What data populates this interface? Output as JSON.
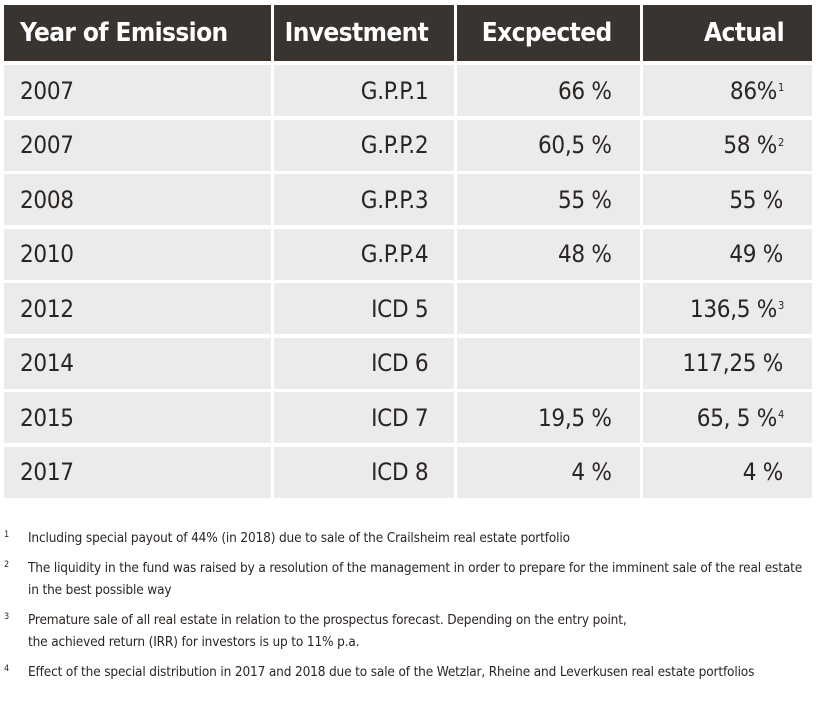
{
  "table": {
    "headers": [
      "Year of Emission",
      "Investment",
      "Excpected",
      "Actual"
    ],
    "rows": [
      {
        "year": "2007",
        "investment": "G.P.P.1",
        "expected": "66 %",
        "actual": "86%",
        "sup": "1"
      },
      {
        "year": "2007",
        "investment": "G.P.P.2",
        "expected": "60,5 %",
        "actual": "58 %",
        "sup": "2"
      },
      {
        "year": "2008",
        "investment": "G.P.P.3",
        "expected": "55 %",
        "actual": "55 %",
        "sup": ""
      },
      {
        "year": "2010",
        "investment": "G.P.P.4",
        "expected": "48 %",
        "actual": "49 %",
        "sup": ""
      },
      {
        "year": "2012",
        "investment": "ICD 5",
        "expected": "",
        "actual": "136,5 %",
        "sup": "3"
      },
      {
        "year": "2014",
        "investment": "ICD 6",
        "expected": "",
        "actual": "117,25 %",
        "sup": ""
      },
      {
        "year": "2015",
        "investment": "ICD 7",
        "expected": "19,5 %",
        "actual": "65, 5 %",
        "sup": "4"
      },
      {
        "year": "2017",
        "investment": "ICD 8",
        "expected": "4 %",
        "actual": "4 %",
        "sup": ""
      }
    ]
  },
  "footnotes": [
    {
      "num": "1",
      "text": "Including special payout of 44% (in 2018) due to sale of the Crailsheim real estate portfolio"
    },
    {
      "num": "2",
      "text": "The liquidity in the fund was raised by a resolution of the management in order to prepare for the imminent sale of the real estate\nin the best possible way"
    },
    {
      "num": "3",
      "text": "Premature sale of all real estate in relation to the prospectus forecast. Depending on the entry point,\nthe achieved return (IRR) for investors is up to 11% p.a."
    },
    {
      "num": "4",
      "text": "Effect of the special distribution in 2017 and 2018 due to sale of the Wetzlar, Rheine and Leverkusen real estate portfolios"
    }
  ]
}
